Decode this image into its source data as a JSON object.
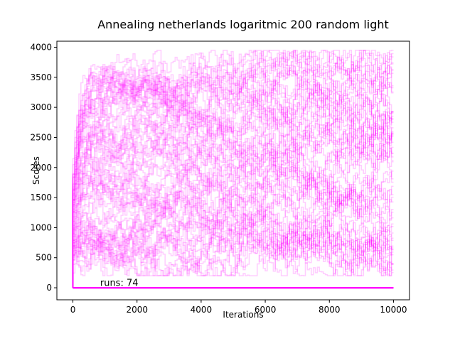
{
  "chart_data": {
    "type": "line",
    "title": "Annealing netherlands logaritmic 200 random light",
    "xlabel": "Iterations",
    "ylabel": "Scores",
    "xlim": [
      -500,
      10500
    ],
    "ylim": [
      -200,
      4100
    ],
    "xticks": [
      0,
      2000,
      4000,
      6000,
      8000,
      10000
    ],
    "xtick_labels": [
      "0",
      "2000",
      "4000",
      "6000",
      "8000",
      "10000"
    ],
    "yticks": [
      0,
      500,
      1000,
      1500,
      2000,
      2500,
      3000,
      3500,
      4000
    ],
    "ytick_labels": [
      "0",
      "500",
      "1000",
      "1500",
      "2000",
      "2500",
      "3000",
      "3500",
      "4000"
    ],
    "annotation": {
      "text": "runs: 74",
      "x": 850,
      "y": 30
    },
    "series_color": "#ff00ff",
    "series_alpha": 0.2,
    "grid": false,
    "legend": "none",
    "run_count": 74,
    "bands": [
      {
        "level": 3300,
        "count": 16,
        "spread": 300
      },
      {
        "level": 2600,
        "count": 12,
        "spread": 400
      },
      {
        "level": 2100,
        "count": 10,
        "spread": 450
      },
      {
        "level": 1200,
        "count": 12,
        "spread": 450
      },
      {
        "level": 800,
        "count": 12,
        "spread": 350
      },
      {
        "level": 0,
        "count": 12,
        "spread": 0
      }
    ],
    "x_max": 10000
  }
}
